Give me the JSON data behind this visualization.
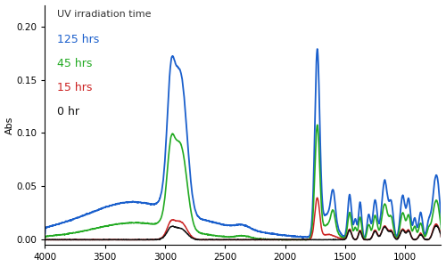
{
  "ylabel": "Abs",
  "xlim": [
    4000,
    700
  ],
  "ylim": [
    -0.005,
    0.22
  ],
  "yticks": [
    0.0,
    0.05,
    0.1,
    0.15,
    0.2
  ],
  "xticks": [
    4000,
    3500,
    3000,
    2500,
    2000,
    1500,
    1000
  ],
  "legend_title": "UV irradiation time",
  "legend_entries": [
    "125 hrs",
    "45 hrs",
    "15 hrs",
    "0 hr"
  ],
  "line_colors": [
    "#1a5fcc",
    "#22aa22",
    "#cc2222",
    "#111111"
  ],
  "background_color": "#ffffff",
  "legend_title_color": "#333333",
  "figsize": [
    5.0,
    3.0
  ],
  "dpi": 100
}
